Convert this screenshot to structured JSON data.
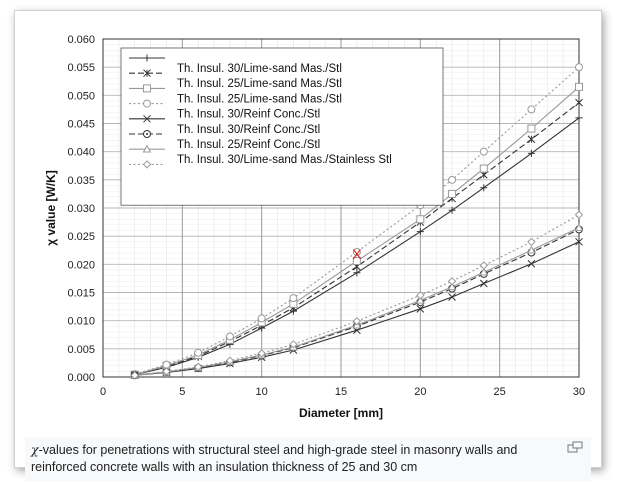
{
  "chart_data": {
    "type": "line",
    "xlabel": "Diameter [mm]",
    "ylabel": "χ value [W/K]",
    "xlim": [
      0,
      30
    ],
    "ylim": [
      0,
      0.06
    ],
    "x_ticks": [
      "0",
      "5",
      "10",
      "15",
      "20",
      "25",
      "30"
    ],
    "y_ticks": [
      "0.000",
      "0.005",
      "0.010",
      "0.015",
      "0.020",
      "0.025",
      "0.030",
      "0.035",
      "0.040",
      "0.045",
      "0.050",
      "0.055",
      "0.060"
    ],
    "grid": true,
    "legend_position": "top-left",
    "x": [
      2,
      4,
      6,
      8,
      10,
      12,
      16,
      20,
      22,
      24,
      27,
      30
    ],
    "series": [
      {
        "name": "Th. Insul. 30/Lime-sand Mas./Stl",
        "marker": "plus",
        "dash": "solid",
        "color": "#333333",
        "values": [
          0.0004,
          0.0017,
          0.0035,
          0.0058,
          0.0087,
          0.0117,
          0.0185,
          0.0258,
          0.0296,
          0.0336,
          0.0397,
          0.046
        ]
      },
      {
        "name": "Th. Insul. 25/Lime-sand Mas./Stl",
        "marker": "asterisk",
        "dash": "dashed",
        "color": "#333333",
        "values": [
          0.0004,
          0.0019,
          0.0037,
          0.0063,
          0.0092,
          0.0123,
          0.0196,
          0.0275,
          0.0317,
          0.0359,
          0.0422,
          0.0487
        ]
      },
      {
        "name": "Th. Insul. 25/Lime-sand Mas./Stl",
        "marker": "square",
        "dash": "solid",
        "color": "#999999",
        "values": [
          0.0004,
          0.002,
          0.0039,
          0.0066,
          0.0097,
          0.013,
          0.0206,
          0.028,
          0.0325,
          0.037,
          0.0441,
          0.0515
        ]
      },
      {
        "name": "Th. Insul. 30/Reinf Conc./Stl",
        "marker": "circle",
        "dash": "dotted",
        "color": "#999999",
        "values": [
          0.0005,
          0.0022,
          0.0043,
          0.0072,
          0.0104,
          0.014,
          0.0222,
          0.0305,
          0.035,
          0.04,
          0.0475,
          0.055
        ]
      },
      {
        "name": "Th. Insul. 30/Reinf Conc./Stl",
        "marker": "x",
        "dash": "solid",
        "color": "#333333",
        "values": [
          0.0003,
          0.0008,
          0.0015,
          0.0024,
          0.0035,
          0.0048,
          0.0083,
          0.0121,
          0.0142,
          0.0166,
          0.0201,
          0.024
        ]
      },
      {
        "name": "Th. Insul. 25/Reinf Conc./Stl",
        "marker": "circle-dot",
        "dash": "dashed",
        "color": "#333333",
        "values": [
          0.0003,
          0.0009,
          0.0016,
          0.0026,
          0.0038,
          0.0052,
          0.009,
          0.0133,
          0.0157,
          0.0183,
          0.0221,
          0.0262
        ]
      },
      {
        "name": "Th. Insul. 30/Lime-sand Mas./Stainless Stl",
        "marker": "triangle",
        "dash": "solid",
        "color": "#999999",
        "values": [
          0.0003,
          0.0009,
          0.0017,
          0.0027,
          0.0039,
          0.0053,
          0.0092,
          0.0136,
          0.016,
          0.0186,
          0.0225,
          0.0265
        ]
      },
      {
        "name": "",
        "marker": "diamond",
        "dash": "dotted",
        "color": "#999999",
        "values": [
          0.0003,
          0.001,
          0.0018,
          0.0029,
          0.0042,
          0.0058,
          0.0099,
          0.0145,
          0.017,
          0.0198,
          0.024,
          0.0288
        ]
      }
    ],
    "annotation": {
      "symbol": "X",
      "color": "#e02020",
      "x": 16,
      "y": 0.0218
    }
  },
  "caption": {
    "symbol": "χ",
    "text": "-values for penetrations with structural steel and high-grade steel in masonry walls and reinforced concrete walls with an insulation thickness of 25 and 30 cm"
  },
  "icons": {
    "enlarge": "enlarge-icon"
  }
}
